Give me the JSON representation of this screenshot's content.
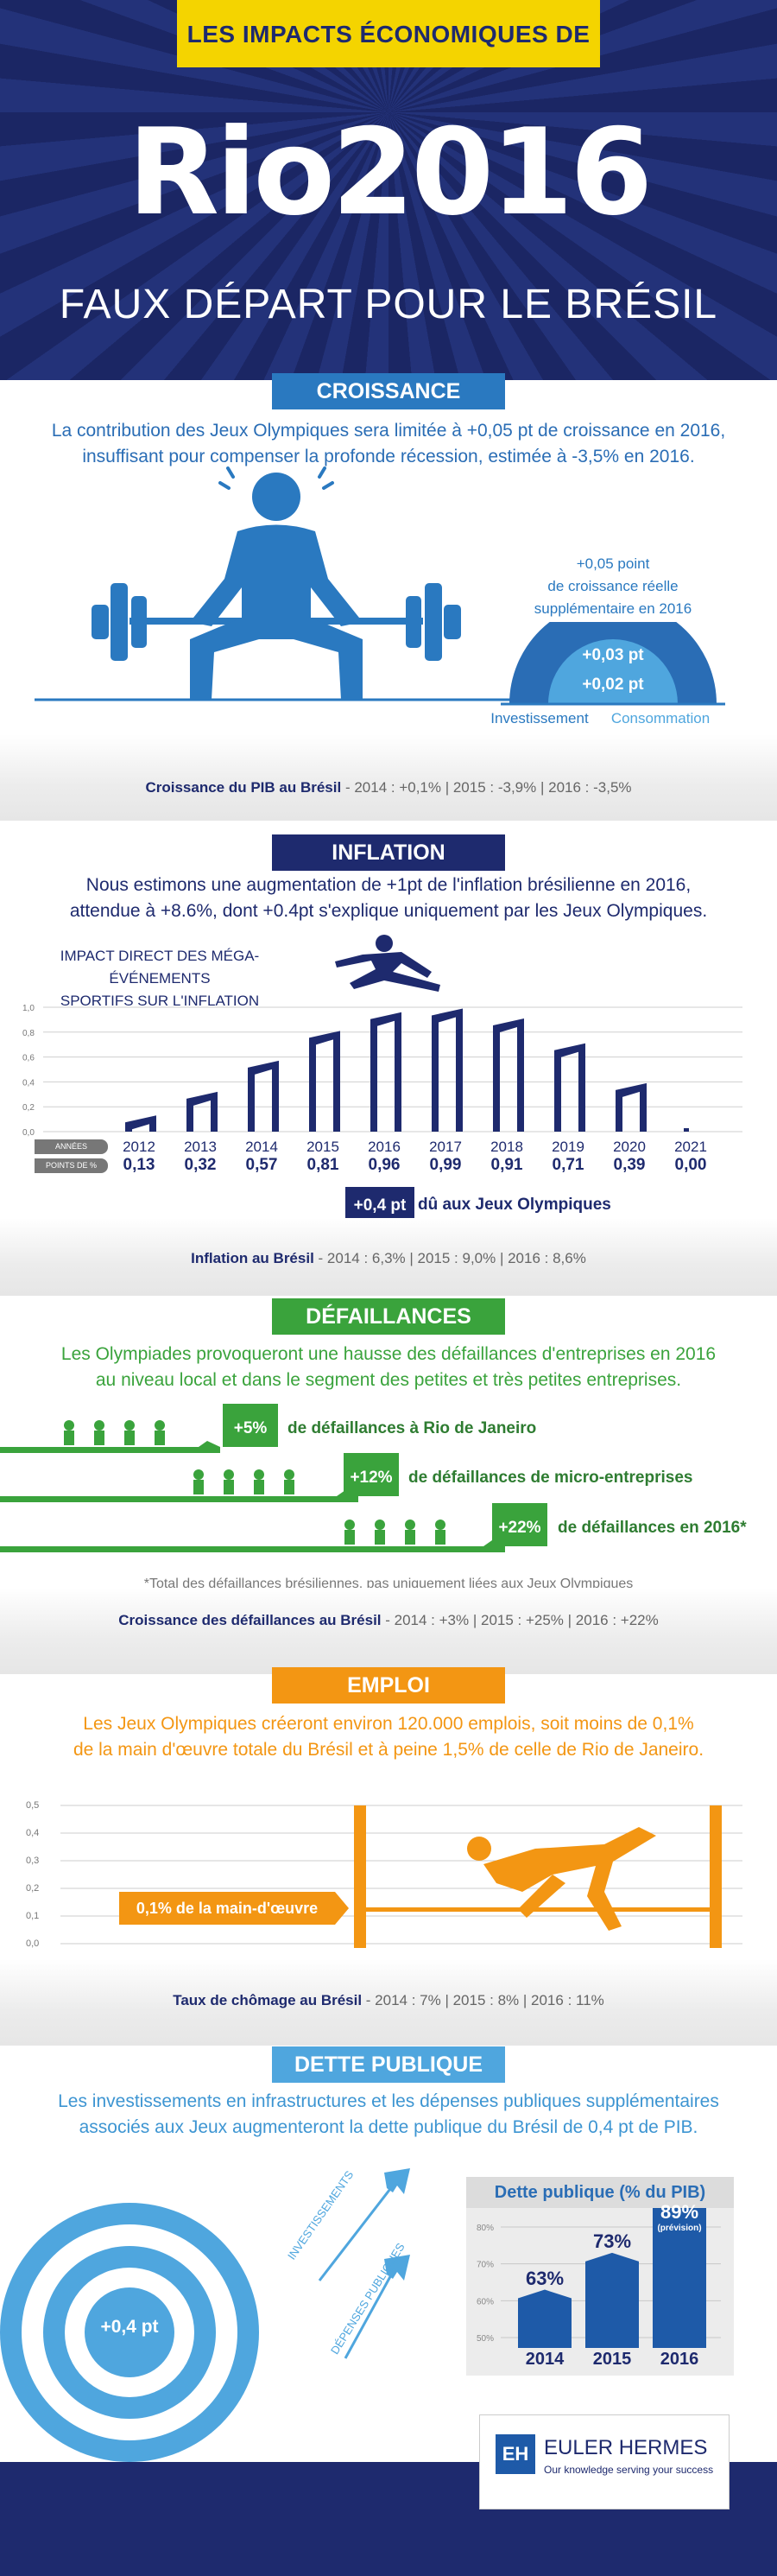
{
  "header": {
    "banner": "LES IMPACTS ÉCONOMIQUES DE",
    "logo": "Rio2016",
    "subtitle": "FAUX DÉPART POUR LE BRÉSIL",
    "colors": {
      "navy": "#1e2a6e",
      "yellow": "#f4d400"
    }
  },
  "croissance": {
    "tag": "CROISSANCE",
    "intro_1": "La contribution des Jeux Olympiques sera limitée à +0,05 pt de croissance en 2016,",
    "intro_2": "insuffisant pour compenser la profonde récession, estimée à -3,5% en 2016.",
    "gauge_label_1": "+0,05 point",
    "gauge_label_2": "de croissance réelle",
    "gauge_label_3": "supplémentaire en 2016",
    "gauge_outer": "+0,03 pt",
    "gauge_inner": "+0,02 pt",
    "legend_investissement": "Investissement",
    "legend_consommation": "Consommation",
    "stats_bold": "Croissance du PIB au Brésil",
    "stats_rest": " - 2014 : +0,1% | 2015 : -3,9% | 2016 : -3,5%",
    "color": "#2a79c0"
  },
  "inflation": {
    "tag": "INFLATION",
    "intro_1": "Nous estimons une augmentation de +1pt de l'inflation brésilienne en 2016,",
    "intro_2": "attendue à +8.6%, dont +0.4pt s'explique uniquement par les Jeux Olympiques.",
    "chart_title_1": "IMPACT DIRECT DES MÉGA-ÉVÉNEMENTS",
    "chart_title_2": "SPORTIFS SUR L'INFLATION",
    "row_label_years": "ANNÉES",
    "row_label_points": "POINTS DE %",
    "callout_value": "+0,4 pt",
    "callout_text": "dû aux Jeux Olympiques",
    "stats_bold": "Inflation au Brésil",
    "stats_rest": " - 2014 : 6,3% | 2015 : 9,0% | 2016 : 8,6%",
    "color": "#1e2a6e"
  },
  "chart_data": {
    "type": "bar",
    "title": "IMPACT DIRECT DES MÉGA-ÉVÉNEMENTS SPORTIFS SUR L'INFLATION",
    "categories": [
      "2012",
      "2013",
      "2014",
      "2015",
      "2016",
      "2017",
      "2018",
      "2019",
      "2020",
      "2021"
    ],
    "values": [
      0.13,
      0.32,
      0.57,
      0.81,
      0.96,
      0.99,
      0.91,
      0.71,
      0.39,
      0.0
    ],
    "value_labels": [
      "0,13",
      "0,32",
      "0,57",
      "0,81",
      "0,96",
      "0,99",
      "0,91",
      "0,71",
      "0,39",
      "0,00"
    ],
    "yticks": [
      "1,0",
      "0,8",
      "0,6",
      "0,4",
      "0,2",
      "0,0"
    ],
    "ylim": [
      0,
      1.0
    ],
    "grid": true
  },
  "defaillances": {
    "tag": "DÉFAILLANCES",
    "intro_1": "Les Olympiades provoqueront une hausse des défaillances d'entreprises en 2016",
    "intro_2": "au niveau local et dans le segment des petites et très petites entreprises.",
    "rows": [
      {
        "badge": "+5%",
        "label": "de défaillances à Rio de Janeiro"
      },
      {
        "badge": "+12%",
        "label": "de défaillances de micro-entreprises"
      },
      {
        "badge": "+22%",
        "label": "de défaillances en 2016*"
      }
    ],
    "footnote": "*Total des défaillances brésiliennes, pas uniquement liées aux Jeux Olympiques",
    "stats_bold": "Croissance des défaillances au Brésil",
    "stats_rest": " - 2014 : +3% | 2015 : +25% | 2016 : +22%",
    "color": "#3aa33c"
  },
  "emploi": {
    "tag": "EMPLOI",
    "intro_1": "Les Jeux Olympiques créeront environ 120.000 emplois, soit moins de 0,1%",
    "intro_2": "de la main d'œuvre totale du Brésil et à peine 1,5% de celle de Rio de Janeiro.",
    "yticks": [
      "0,5",
      "0,4",
      "0,3",
      "0,2",
      "0,1",
      "0,0"
    ],
    "callout": "0,1% de la main-d'œuvre",
    "stats_bold": "Taux de chômage au Brésil",
    "stats_rest": " - 2014 : 7% | 2015 : 8% | 2016 : 11%",
    "color": "#f39613"
  },
  "dette": {
    "tag": "DETTE PUBLIQUE",
    "intro_1": "Les investissements en infrastructures et les dépenses publiques supplémentaires",
    "intro_2": "associés aux Jeux augmenteront la dette publique du Brésil de 0,4 pt de PIB.",
    "target_label": "+0,4 pt",
    "arrow_1": "INVESTISSEMENTS",
    "arrow_2": "DÉPENSES PUBLIQUES",
    "chart_title": "Dette publique (% du PIB)",
    "yticks": [
      "80%",
      "70%",
      "60%",
      "50%"
    ],
    "bars": [
      {
        "year": "2014",
        "value": 63,
        "label": "63%"
      },
      {
        "year": "2015",
        "value": 73,
        "label": "73%"
      },
      {
        "year": "2016",
        "value": 89,
        "label": "89%",
        "note": "(prévision)"
      }
    ],
    "color": "#4fa6de"
  },
  "footer": {
    "logo_mark": "EH",
    "brand": "EULER HERMES",
    "tagline": "Our knowledge serving your success"
  }
}
